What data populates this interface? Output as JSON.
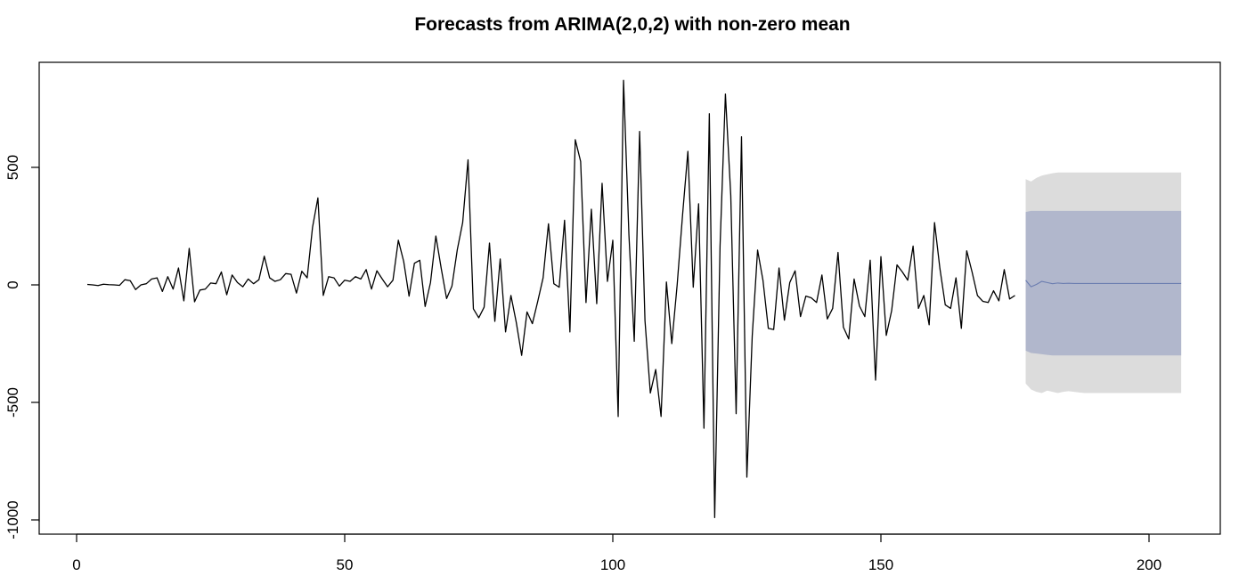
{
  "chart_data": {
    "type": "line",
    "title": "Forecasts from ARIMA(2,0,2) with non-zero mean",
    "xlabel": "",
    "ylabel": "",
    "xlim": [
      0,
      210
    ],
    "ylim": [
      -1050,
      950
    ],
    "x_ticks": [
      0,
      50,
      100,
      150,
      200
    ],
    "x_tick_labels": [
      "0",
      "50",
      "100",
      "150",
      "200"
    ],
    "y_ticks": [
      -1000,
      -500,
      0,
      500
    ],
    "y_tick_labels": [
      "-1000",
      "-500",
      "0",
      "500"
    ],
    "grid": false,
    "legend": "none",
    "colors": {
      "line": "#000000",
      "forecast_line": "#6b7db0",
      "band_80": "#b1b7cc",
      "band_95": "#dcdcdc",
      "frame": "#000000"
    },
    "series": [
      {
        "x_start": 2,
        "values": [
          2,
          0,
          -3,
          3,
          1,
          0,
          -2,
          22,
          18,
          -20,
          0,
          5,
          25,
          30,
          -28,
          35,
          -18,
          72,
          -68,
          155,
          -72,
          -22,
          -18,
          8,
          5,
          55,
          -42,
          42,
          10,
          -8,
          25,
          5,
          22,
          122,
          30,
          15,
          22,
          48,
          45,
          -35,
          58,
          30,
          245,
          370,
          -45,
          35,
          30,
          -5,
          20,
          15,
          35,
          25,
          65,
          -18,
          60,
          25,
          -8,
          20,
          190,
          100,
          -48,
          92,
          105,
          -92,
          10,
          208,
          70,
          -58,
          -5,
          150,
          265,
          532,
          -102,
          -140,
          -95,
          178,
          -155,
          110,
          -200,
          -45,
          -160,
          -300,
          -115,
          -165,
          -70,
          30,
          260,
          5,
          -10,
          275,
          -200,
          618,
          525,
          -75,
          322,
          -80,
          432,
          15,
          190,
          -560,
          870,
          215,
          -240,
          653,
          -152,
          -460,
          -360,
          -560,
          12,
          -250,
          0,
          295,
          568,
          -10,
          345,
          -610,
          728,
          -990,
          165,
          812,
          380,
          -548,
          630,
          -818,
          -218,
          148,
          20,
          -185,
          -190,
          72,
          -150,
          10,
          60,
          -135,
          -48,
          -55,
          -75,
          42,
          -145,
          -100,
          138,
          -180,
          -230,
          25,
          -90,
          -135,
          105,
          -405,
          120,
          -215,
          -110,
          85,
          55,
          20,
          165,
          -100,
          -45,
          -170,
          265,
          70,
          -85,
          -100,
          30,
          -185,
          145,
          55,
          -45,
          -70,
          -75,
          -25,
          -68,
          65,
          -60,
          -45
        ]
      },
      {
        "name": "",
        "x_start": 177,
        "values": [
          20,
          -8,
          2,
          15,
          10,
          5,
          8,
          6,
          7,
          6,
          6,
          6,
          6,
          6,
          6,
          6,
          6,
          6,
          6,
          6,
          6,
          6,
          6,
          6,
          6,
          6,
          6,
          6,
          6,
          6
        ]
      }
    ],
    "forecast_bands": {
      "x_start": 177,
      "lo80": [
        -280,
        -290,
        -292,
        -295,
        -298,
        -300,
        -300,
        -300,
        -300,
        -300,
        -300,
        -300,
        -300,
        -300,
        -300,
        -300,
        -300,
        -300,
        -300,
        -300,
        -300,
        -300,
        -300,
        -300,
        -300,
        -300,
        -300,
        -300,
        -300,
        -300
      ],
      "hi80": [
        310,
        315,
        315,
        315,
        315,
        315,
        315,
        315,
        315,
        315,
        315,
        315,
        315,
        315,
        315,
        315,
        315,
        315,
        315,
        315,
        315,
        315,
        315,
        315,
        315,
        315,
        315,
        315,
        315,
        315
      ],
      "lo95": [
        -420,
        -445,
        -455,
        -460,
        -450,
        -455,
        -460,
        -455,
        -452,
        -455,
        -458,
        -460,
        -460,
        -460,
        -460,
        -460,
        -460,
        -460,
        -460,
        -460,
        -460,
        -460,
        -460,
        -460,
        -460,
        -460,
        -460,
        -460,
        -460,
        -460
      ],
      "hi95": [
        450,
        440,
        455,
        465,
        470,
        475,
        478,
        478,
        478,
        478,
        478,
        478,
        478,
        478,
        478,
        478,
        478,
        478,
        478,
        478,
        478,
        478,
        478,
        478,
        478,
        478,
        478,
        478,
        478,
        478
      ]
    }
  }
}
